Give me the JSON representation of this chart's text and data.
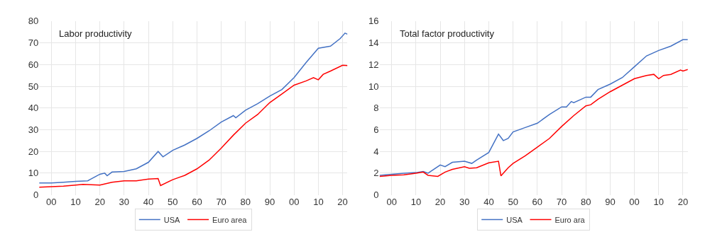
{
  "chart_data": [
    {
      "type": "line",
      "title": "Labor productivity",
      "xlim": [
        1895,
        2022
      ],
      "ylim": [
        0,
        80
      ],
      "yticks": [
        0,
        10,
        20,
        30,
        40,
        50,
        60,
        70,
        80
      ],
      "xticks": [
        {
          "value": 1900,
          "label": "00"
        },
        {
          "value": 1910,
          "label": "10"
        },
        {
          "value": 1920,
          "label": "20"
        },
        {
          "value": 1930,
          "label": "30"
        },
        {
          "value": 1940,
          "label": "40"
        },
        {
          "value": 1950,
          "label": "50"
        },
        {
          "value": 1960,
          "label": "60"
        },
        {
          "value": 1970,
          "label": "70"
        },
        {
          "value": 1980,
          "label": "80"
        },
        {
          "value": 1990,
          "label": "90"
        },
        {
          "value": 2000,
          "label": "00"
        },
        {
          "value": 2010,
          "label": "10"
        },
        {
          "value": 2020,
          "label": "20"
        }
      ],
      "grid": true,
      "legend": "bottom",
      "line_style": "solid",
      "series": [
        {
          "name": "USA",
          "color": "#4472c4",
          "x": [
            1895,
            1900,
            1905,
            1910,
            1915,
            1920,
            1922,
            1923,
            1925,
            1930,
            1935,
            1940,
            1944,
            1946,
            1950,
            1955,
            1960,
            1965,
            1970,
            1975,
            1976,
            1980,
            1985,
            1990,
            1995,
            2000,
            2005,
            2010,
            2015,
            2019,
            2021,
            2022
          ],
          "values": [
            5.5,
            5.5,
            5.8,
            6.2,
            6.5,
            9.5,
            10,
            8.8,
            10.5,
            10.8,
            12,
            15,
            20,
            17.5,
            20.5,
            23,
            26,
            29.5,
            33.5,
            36.5,
            35.5,
            39,
            42,
            45.5,
            48.5,
            54,
            61,
            67.5,
            68.5,
            72,
            74.5,
            74
          ]
        },
        {
          "name": "Euro area",
          "color": "#ff0000",
          "x": [
            1895,
            1905,
            1910,
            1913,
            1920,
            1925,
            1930,
            1935,
            1940,
            1944,
            1945,
            1950,
            1955,
            1960,
            1965,
            1970,
            1975,
            1980,
            1985,
            1990,
            1995,
            2000,
            2005,
            2008,
            2010,
            2012,
            2015,
            2020,
            2022
          ],
          "values": [
            3.5,
            4,
            4.5,
            4.8,
            4.5,
            5.8,
            6.5,
            6.5,
            7.3,
            7.5,
            4.3,
            7,
            9,
            12,
            16,
            21.5,
            27.5,
            33,
            37,
            42.5,
            46.5,
            50.5,
            52.5,
            54,
            53,
            55.5,
            57,
            59.7,
            59.5
          ]
        }
      ]
    },
    {
      "type": "line",
      "title": "Total factor productivity",
      "xlim": [
        1895,
        2022
      ],
      "ylim": [
        0,
        16
      ],
      "yticks": [
        0,
        2,
        4,
        6,
        8,
        10,
        12,
        14,
        16
      ],
      "xticks": [
        {
          "value": 1900,
          "label": "00"
        },
        {
          "value": 1910,
          "label": "10"
        },
        {
          "value": 1920,
          "label": "20"
        },
        {
          "value": 1930,
          "label": "30"
        },
        {
          "value": 1940,
          "label": "40"
        },
        {
          "value": 1950,
          "label": "50"
        },
        {
          "value": 1960,
          "label": "60"
        },
        {
          "value": 1970,
          "label": "70"
        },
        {
          "value": 1980,
          "label": "80"
        },
        {
          "value": 1990,
          "label": "90"
        },
        {
          "value": 2000,
          "label": "00"
        },
        {
          "value": 2010,
          "label": "10"
        },
        {
          "value": 2020,
          "label": "20"
        }
      ],
      "grid": true,
      "legend": "bottom",
      "line_style": "solid",
      "series": [
        {
          "name": "USA",
          "color": "#4472c4",
          "x": [
            1895,
            1900,
            1905,
            1910,
            1913,
            1915,
            1920,
            1922,
            1925,
            1930,
            1933,
            1935,
            1940,
            1944,
            1946,
            1948,
            1950,
            1955,
            1960,
            1965,
            1970,
            1972,
            1974,
            1975,
            1980,
            1982,
            1985,
            1990,
            1995,
            2000,
            2005,
            2010,
            2015,
            2020,
            2022
          ],
          "values": [
            1.8,
            1.9,
            2.0,
            2.05,
            2.15,
            2.0,
            2.75,
            2.6,
            3.0,
            3.1,
            2.9,
            3.2,
            3.9,
            5.6,
            5.0,
            5.2,
            5.8,
            6.2,
            6.6,
            7.4,
            8.1,
            8.1,
            8.6,
            8.5,
            9.0,
            9.0,
            9.7,
            10.2,
            10.8,
            11.8,
            12.8,
            13.3,
            13.7,
            14.3,
            14.3
          ]
        },
        {
          "name": "Euro ara",
          "color": "#ff0000",
          "x": [
            1895,
            1900,
            1905,
            1910,
            1913,
            1915,
            1919,
            1922,
            1925,
            1930,
            1932,
            1935,
            1940,
            1944,
            1945,
            1948,
            1950,
            1955,
            1960,
            1965,
            1970,
            1975,
            1980,
            1982,
            1985,
            1990,
            1995,
            2000,
            2005,
            2008,
            2010,
            2012,
            2015,
            2019,
            2020,
            2022
          ],
          "values": [
            1.7,
            1.8,
            1.85,
            2.0,
            2.1,
            1.8,
            1.7,
            2.1,
            2.35,
            2.6,
            2.45,
            2.5,
            2.95,
            3.1,
            1.75,
            2.5,
            2.9,
            3.6,
            4.4,
            5.2,
            6.3,
            7.3,
            8.2,
            8.3,
            8.8,
            9.5,
            10.1,
            10.7,
            11.0,
            11.1,
            10.7,
            11.0,
            11.1,
            11.5,
            11.4,
            11.55
          ]
        }
      ]
    }
  ]
}
